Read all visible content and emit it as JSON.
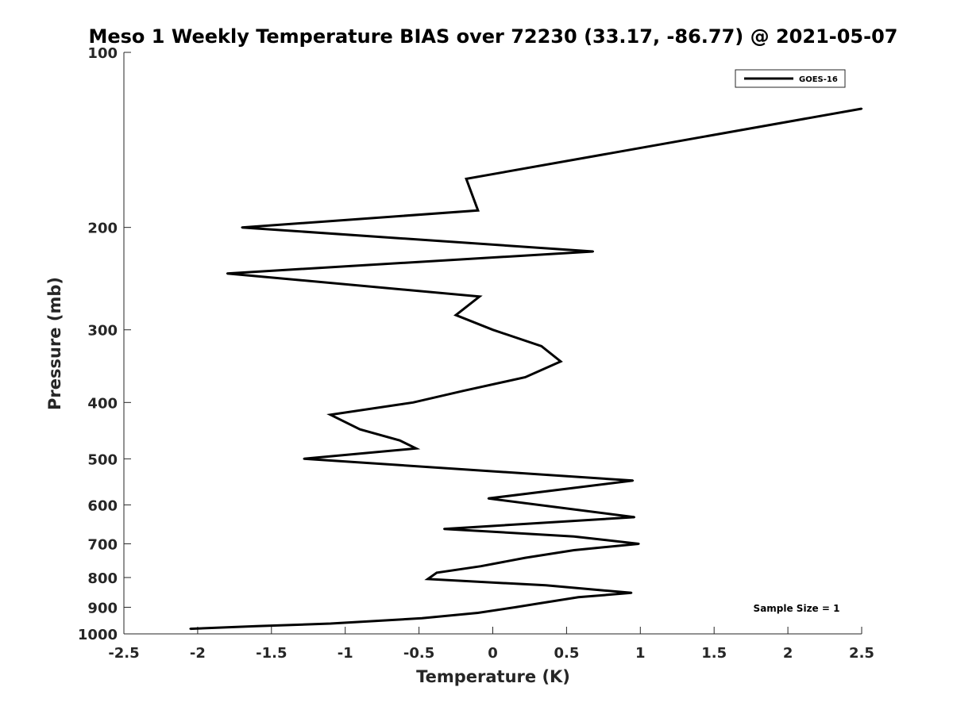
{
  "chart_data": {
    "type": "line",
    "title": "Meso 1 Weekly Temperature BIAS over 72230 (33.17, -86.77) @ 2021-05-07",
    "xlabel": "Temperature (K)",
    "ylabel": "Pressure (mb)",
    "xlim": [
      -2.5,
      2.5
    ],
    "ylim": [
      100,
      1000
    ],
    "yscale": "log",
    "y_reversed": true,
    "grid": false,
    "legend_position": "top-right",
    "xticks": [
      -2.5,
      -2,
      -1.5,
      -1,
      -0.5,
      0,
      0.5,
      1,
      1.5,
      2,
      2.5
    ],
    "xtick_labels": [
      "-2.5",
      "-2",
      "-1.5",
      "-1",
      "-0.5",
      "0",
      "0.5",
      "1",
      "1.5",
      "2",
      "2.5"
    ],
    "yticks": [
      100,
      200,
      300,
      400,
      500,
      600,
      700,
      800,
      900,
      1000
    ],
    "ytick_labels": [
      "100",
      "200",
      "300",
      "400",
      "500",
      "600",
      "700",
      "800",
      "900",
      "1000"
    ],
    "series": [
      {
        "name": "GOES-16",
        "color": "#000000",
        "points": [
          {
            "x": 2.5,
            "p": 125
          },
          {
            "x": -0.18,
            "p": 165
          },
          {
            "x": -0.1,
            "p": 187
          },
          {
            "x": -1.7,
            "p": 200
          },
          {
            "x": 0.68,
            "p": 220
          },
          {
            "x": -1.8,
            "p": 240
          },
          {
            "x": -0.09,
            "p": 263
          },
          {
            "x": -0.25,
            "p": 283
          },
          {
            "x": 0.0,
            "p": 300
          },
          {
            "x": 0.33,
            "p": 320
          },
          {
            "x": 0.46,
            "p": 340
          },
          {
            "x": 0.22,
            "p": 362
          },
          {
            "x": -0.2,
            "p": 382
          },
          {
            "x": -0.54,
            "p": 400
          },
          {
            "x": -1.1,
            "p": 420
          },
          {
            "x": -0.9,
            "p": 445
          },
          {
            "x": -0.63,
            "p": 465
          },
          {
            "x": -0.52,
            "p": 480
          },
          {
            "x": -1.28,
            "p": 500
          },
          {
            "x": 0.95,
            "p": 545
          },
          {
            "x": -0.03,
            "p": 585
          },
          {
            "x": 0.42,
            "p": 605
          },
          {
            "x": 0.96,
            "p": 630
          },
          {
            "x": -0.33,
            "p": 660
          },
          {
            "x": 0.55,
            "p": 680
          },
          {
            "x": 0.99,
            "p": 700
          },
          {
            "x": 0.55,
            "p": 718
          },
          {
            "x": 0.22,
            "p": 740
          },
          {
            "x": -0.08,
            "p": 765
          },
          {
            "x": -0.38,
            "p": 785
          },
          {
            "x": -0.44,
            "p": 805
          },
          {
            "x": 0.36,
            "p": 825
          },
          {
            "x": 0.94,
            "p": 850
          },
          {
            "x": 0.58,
            "p": 865
          },
          {
            "x": 0.33,
            "p": 885
          },
          {
            "x": 0.15,
            "p": 900
          },
          {
            "x": -0.1,
            "p": 920
          },
          {
            "x": -0.48,
            "p": 940
          },
          {
            "x": -1.1,
            "p": 960
          },
          {
            "x": -1.6,
            "p": 970
          },
          {
            "x": -2.05,
            "p": 980
          }
        ]
      }
    ],
    "annotations": [
      {
        "text": "Sample Size = 1",
        "position": "bottom-right"
      }
    ]
  }
}
